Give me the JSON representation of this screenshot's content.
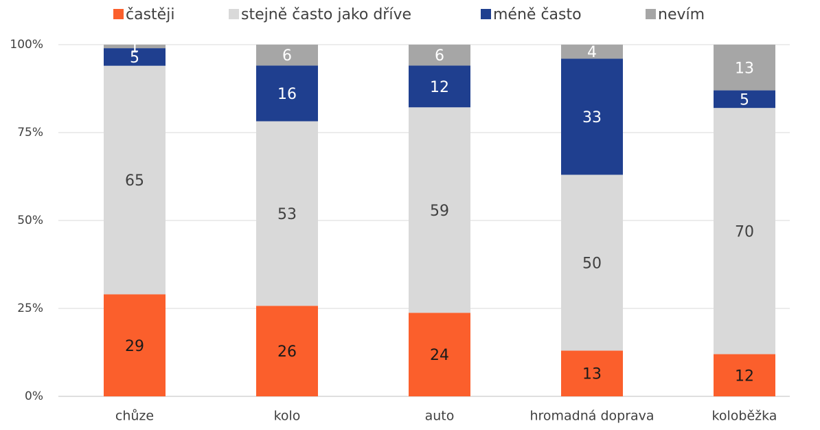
{
  "chart_data": {
    "type": "bar",
    "stacked": "percent",
    "categories": [
      "chůze",
      "kolo",
      "auto",
      "hromadná doprava",
      "koloběžka"
    ],
    "series": [
      {
        "name": "častěji",
        "color": "#fb5f2c",
        "label_color": "#1a1a1a",
        "values": [
          29,
          26,
          24,
          13,
          12
        ]
      },
      {
        "name": "stejně často jako dříve",
        "color": "#d9d9d9",
        "label_color": "#404040",
        "values": [
          65,
          53,
          59,
          50,
          70
        ]
      },
      {
        "name": "méně často",
        "color": "#1f3f8f",
        "label_color": "#ffffff",
        "values": [
          5,
          16,
          12,
          33,
          5
        ]
      },
      {
        "name": "nevím",
        "color": "#a6a6a6",
        "label_color": "#ffffff",
        "values": [
          1,
          6,
          6,
          4,
          13
        ]
      }
    ],
    "ylim": [
      0,
      100
    ],
    "yticks": [
      {
        "value": 0,
        "label": "0%"
      },
      {
        "value": 25,
        "label": "25%"
      },
      {
        "value": 50,
        "label": "50%"
      },
      {
        "value": 75,
        "label": "75%"
      },
      {
        "value": 100,
        "label": "100%"
      }
    ],
    "grid": true,
    "legend": "top"
  }
}
